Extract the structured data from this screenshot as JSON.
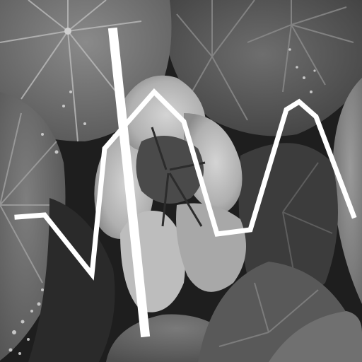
{
  "image": {
    "subject": "",
    "colors": {
      "background_dark": "#1c1c1c",
      "leaf_dark": "#3a3a3a",
      "leaf_mid": "#6a6a6a",
      "leaf_light": "#8e8e8e",
      "vein": "#a8a8a8",
      "petal": "#b4b4b4",
      "petal_light": "#d0d0d0",
      "petal_shadow": "#8a8a8a",
      "flower_center": "#3c3c3c",
      "overlay_stroke": "#ffffff"
    }
  }
}
